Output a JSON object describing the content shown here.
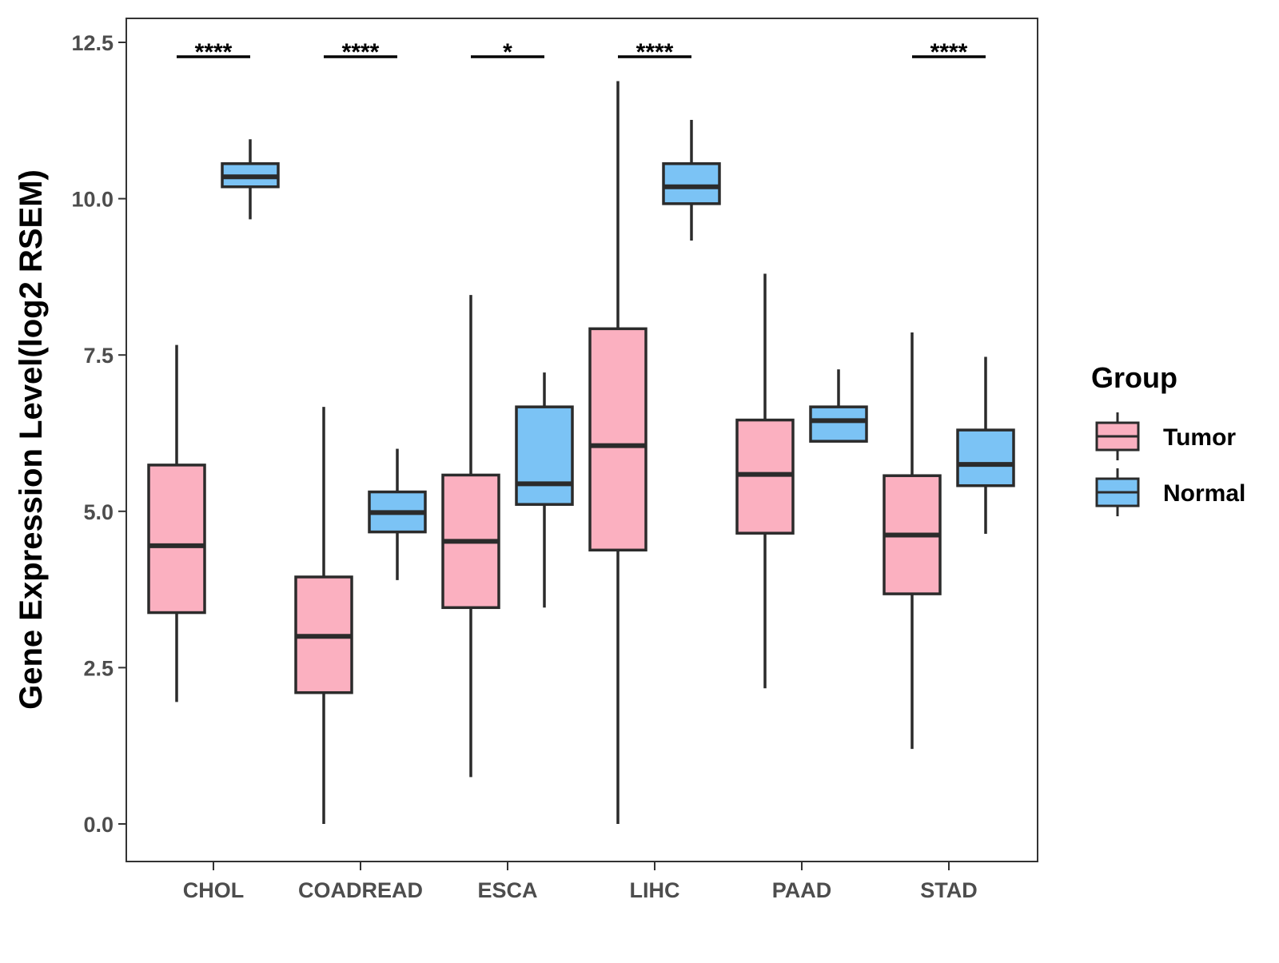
{
  "chart_data": {
    "type": "boxplot",
    "title": "",
    "xlabel": "",
    "ylabel": "Gene Expression Level(log2 RSEM)",
    "ylim": [
      -0.6,
      12.9
    ],
    "yticks": [
      0,
      2.5,
      5,
      7.5,
      10,
      12.5
    ],
    "ytick_labels": [
      "0.0",
      "2.5",
      "5.0",
      "7.5",
      "10.0",
      "12.5"
    ],
    "categories": [
      "CHOL",
      "COADREAD",
      "ESCA",
      "LIHC",
      "PAAD",
      "STAD"
    ],
    "grid": false,
    "legend_position": "right",
    "legend_title": "Group",
    "series": [
      {
        "name": "Tumor",
        "color": "#FBB0C0",
        "boxes": [
          {
            "min": 1.95,
            "q1": 3.38,
            "median": 4.45,
            "q3": 5.74,
            "max": 7.66
          },
          {
            "min": 0.0,
            "q1": 2.1,
            "median": 3.0,
            "q3": 3.95,
            "max": 6.67
          },
          {
            "min": 0.75,
            "q1": 3.46,
            "median": 4.52,
            "q3": 5.58,
            "max": 8.46
          },
          {
            "min": 0.0,
            "q1": 4.38,
            "median": 6.05,
            "q3": 7.92,
            "max": 11.88
          },
          {
            "min": 2.17,
            "q1": 4.65,
            "median": 5.59,
            "q3": 6.46,
            "max": 8.8
          },
          {
            "min": 1.2,
            "q1": 3.68,
            "median": 4.62,
            "q3": 5.57,
            "max": 7.86
          }
        ]
      },
      {
        "name": "Normal",
        "color": "#7BC3F5",
        "boxes": [
          {
            "min": 9.67,
            "q1": 10.19,
            "median": 10.35,
            "q3": 10.56,
            "max": 10.95
          },
          {
            "min": 3.9,
            "q1": 4.67,
            "median": 4.98,
            "q3": 5.31,
            "max": 6.0
          },
          {
            "min": 3.46,
            "q1": 5.11,
            "median": 5.44,
            "q3": 6.67,
            "max": 7.22
          },
          {
            "min": 9.33,
            "q1": 9.92,
            "median": 10.19,
            "q3": 10.56,
            "max": 11.26
          },
          {
            "min": 6.12,
            "q1": 6.12,
            "median": 6.45,
            "q3": 6.67,
            "max": 7.27
          },
          {
            "min": 4.64,
            "q1": 5.41,
            "median": 5.75,
            "q3": 6.3,
            "max": 7.47
          }
        ]
      }
    ],
    "significance": [
      {
        "category": "CHOL",
        "label": "****",
        "y": 12.27
      },
      {
        "category": "COADREAD",
        "label": "****",
        "y": 12.27
      },
      {
        "category": "ESCA",
        "label": "*",
        "y": 12.27
      },
      {
        "category": "LIHC",
        "label": "****",
        "y": 12.27
      },
      {
        "category": "PAAD",
        "label": "",
        "y": 12.27
      },
      {
        "category": "STAD",
        "label": "****",
        "y": 12.27
      }
    ]
  }
}
